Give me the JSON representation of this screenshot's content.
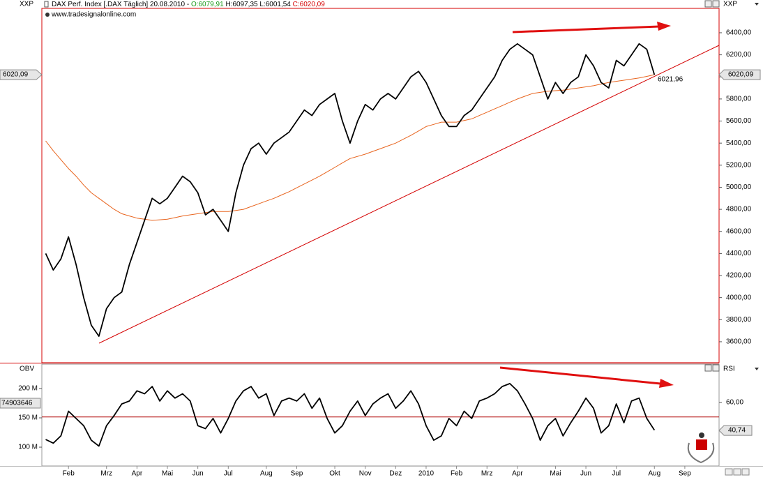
{
  "chart_data": [
    {
      "type": "line",
      "title": "DAX Perf. Index [.DAX  Täglich] 20.08.2010 -",
      "open": "O:6079,91",
      "high_low": "H:6097,35 L:6001,54",
      "close": "C:6020,09",
      "subtitle": "www.tradesignalonline.com",
      "y_label": "XXP",
      "y2_label": "XXP",
      "ylim": [
        3410,
        6621
      ],
      "yticks": [
        {
          "value": 3600,
          "label": "3600,00"
        },
        {
          "value": 3800,
          "label": "3800,00"
        },
        {
          "value": 4000,
          "label": "4000,00"
        },
        {
          "value": 4200,
          "label": "4200,00"
        },
        {
          "value": 4400,
          "label": "4400,00"
        },
        {
          "value": 4600,
          "label": "4600,00"
        },
        {
          "value": 4800,
          "label": "4800,00"
        },
        {
          "value": 5000,
          "label": "5000,00"
        },
        {
          "value": 5200,
          "label": "5200,00"
        },
        {
          "value": 5400,
          "label": "5400,00"
        },
        {
          "value": 5600,
          "label": "5600,00"
        },
        {
          "value": 5800,
          "label": "5800,00"
        },
        {
          "value": 6000,
          "label": "6000,00"
        },
        {
          "value": 6200,
          "label": "6200,00"
        },
        {
          "value": 6400,
          "label": "6400,00"
        }
      ],
      "categories": [
        null,
        null,
        null,
        "Feb",
        null,
        null,
        null,
        null,
        "Mrz",
        null,
        null,
        null,
        "Apr",
        null,
        null,
        null,
        "Mai",
        null,
        null,
        null,
        "Jun",
        null,
        null,
        null,
        "Jul",
        null,
        null,
        null,
        null,
        "Aug",
        null,
        null,
        null,
        "Sep",
        null,
        null,
        null,
        null,
        "Okt",
        null,
        null,
        null,
        "Nov",
        null,
        null,
        null,
        "Dez",
        null,
        null,
        null,
        "2010",
        null,
        null,
        null,
        "Feb",
        null,
        null,
        null,
        "Mrz",
        null,
        null,
        null,
        "Apr",
        null,
        null,
        null,
        null,
        "Mai",
        null,
        null,
        null,
        "Jun",
        null,
        null,
        null,
        "Jul",
        null,
        null,
        null,
        null,
        "Aug",
        null,
        null,
        null,
        "Sep",
        null,
        null,
        null,
        null
      ],
      "series": [
        {
          "color": "#000000",
          "values": [
            4400,
            4250,
            4350,
            4550,
            4300,
            4000,
            3750,
            3650,
            3900,
            4000,
            4050,
            4300,
            4500,
            4700,
            4900,
            4850,
            4900,
            5000,
            5100,
            5050,
            4950,
            4750,
            4800,
            4700,
            4600,
            4950,
            5200,
            5350,
            5400,
            5300,
            5400,
            5450,
            5500,
            5600,
            5700,
            5650,
            5750,
            5800,
            5850,
            5600,
            5400,
            5600,
            5750,
            5700,
            5800,
            5850,
            5800,
            5900,
            6000,
            6050,
            5950,
            5800,
            5650,
            5550,
            5550,
            5650,
            5700,
            5800,
            5900,
            6000,
            6150,
            6250,
            6300,
            6250,
            6200,
            6000,
            5800,
            5950,
            5850,
            5950,
            6000,
            6200,
            6100,
            5950,
            5900,
            6150,
            6100,
            6200,
            6300,
            6250,
            6020,
            null,
            null,
            null,
            null,
            null,
            null,
            null,
            null
          ]
        },
        {
          "color": "#e8641e",
          "values": [
            5420,
            5330,
            5250,
            5170,
            5100,
            5020,
            4950,
            4900,
            4850,
            4800,
            4760,
            4740,
            4720,
            4710,
            4700,
            4705,
            4710,
            4725,
            4740,
            4750,
            4760,
            4770,
            4780,
            4780,
            4780,
            4790,
            4800,
            4825,
            4850,
            4875,
            4900,
            4930,
            4960,
            4995,
            5030,
            5065,
            5100,
            5140,
            5180,
            5220,
            5260,
            5280,
            5300,
            5325,
            5350,
            5375,
            5400,
            5435,
            5470,
            5510,
            5550,
            5570,
            5590,
            5590,
            5590,
            5605,
            5620,
            5650,
            5680,
            5710,
            5740,
            5770,
            5800,
            5825,
            5850,
            5860,
            5870,
            5875,
            5880,
            5890,
            5900,
            5910,
            5920,
            5935,
            5950,
            5960,
            5970,
            5980,
            5990,
            6005,
            6020,
            null,
            null,
            null,
            null,
            null,
            null,
            null,
            null
          ]
        }
      ],
      "last_value": {
        "value": 6020.09,
        "label": "6020,09"
      },
      "trend_label": {
        "value": 6021.96,
        "label": "6021,96"
      },
      "trend_color": "#d40000"
    },
    {
      "type": "line",
      "y_label": "OBV",
      "y2_label": "RSI",
      "ylim": [
        67900000,
        241700000
      ],
      "yticks": [
        {
          "value": 100000000,
          "label": "100 M"
        },
        {
          "value": 150000000,
          "label": "150 M"
        },
        {
          "value": 200000000,
          "label": "200 M"
        }
      ],
      "y2lim": [
        16.3,
        86.4
      ],
      "y2ticks": [
        {
          "value": 60,
          "label": "60,00"
        }
      ],
      "obv_value_label": "74903646",
      "rsi_last": {
        "value": 40.74,
        "label": "40,74"
      },
      "reference_line": 50,
      "reference_color": "#b00000",
      "series": [
        {
          "color": "#000000",
          "axis": "y2",
          "values": [
            34.5,
            32,
            37,
            54,
            49,
            44,
            34,
            30,
            44,
            51,
            59,
            61,
            68,
            66,
            71,
            61,
            68,
            63,
            66,
            61,
            44,
            42,
            49,
            39,
            49,
            61,
            68,
            71,
            63,
            66,
            51,
            61,
            63,
            61,
            66,
            56,
            63,
            49,
            39,
            44,
            54,
            61,
            51,
            59,
            63,
            66,
            56,
            61,
            68,
            59,
            44,
            34,
            37,
            49,
            44,
            54,
            49,
            61,
            63,
            66,
            71,
            73,
            68,
            59,
            49,
            34,
            44,
            49,
            37,
            46,
            54,
            63,
            56,
            39,
            44,
            59,
            46,
            61,
            63,
            49,
            41,
            null,
            null,
            null,
            null,
            null,
            null,
            null,
            null
          ]
        }
      ]
    }
  ]
}
